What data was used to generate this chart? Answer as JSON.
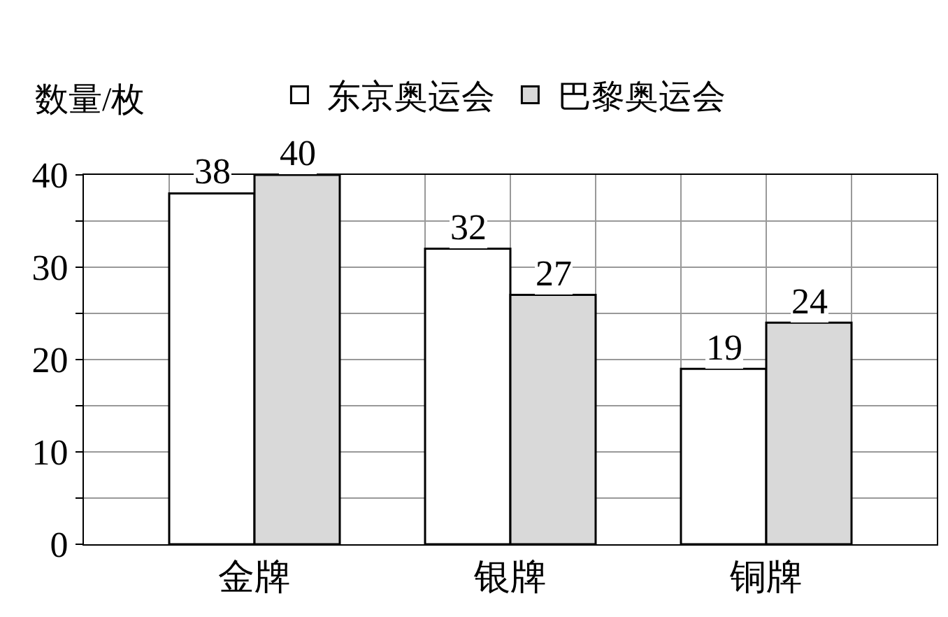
{
  "chart_data": {
    "type": "bar",
    "ylabel": "数量/枚",
    "categories": [
      "金牌",
      "银牌",
      "铜牌"
    ],
    "series": [
      {
        "name": "东京奥运会",
        "color": "#ffffff",
        "values": [
          38,
          32,
          19
        ]
      },
      {
        "name": "巴黎奥运会",
        "color": "#d9d9d9",
        "values": [
          40,
          27,
          24
        ]
      }
    ],
    "ylim": [
      0,
      40
    ],
    "yticks": [
      0,
      {
        "value": 5,
        "label": null
      },
      10,
      {
        "value": 15,
        "label": null
      },
      20,
      {
        "value": 25,
        "label": null
      },
      30,
      {
        "value": 35,
        "label": null
      },
      40
    ],
    "grid": true,
    "legend": "top",
    "data_labels": true
  }
}
